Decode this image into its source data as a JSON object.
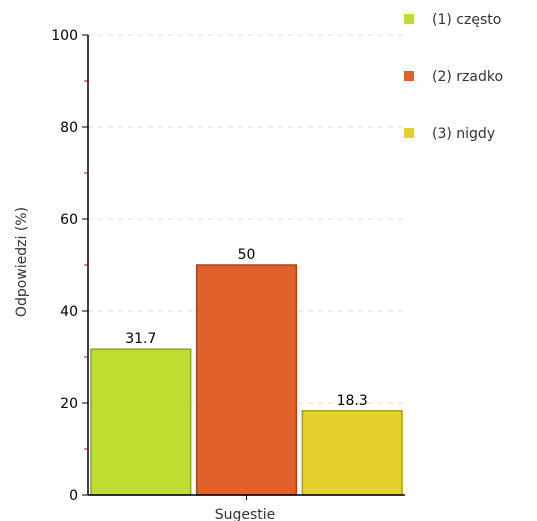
{
  "chart_data": {
    "type": "bar",
    "title": "",
    "xlabel": "Sugestie",
    "ylabel": "Odpowiedzi (%)",
    "ylim": [
      0,
      100
    ],
    "yticks": [
      "0",
      "20",
      "40",
      "60",
      "80",
      "100"
    ],
    "grid": true,
    "legend_position": "top-right",
    "series": [
      {
        "name": "(1) często",
        "value": 31.7,
        "value_label": "31.7",
        "color": "#bcdf2f",
        "border": "#8aa820"
      },
      {
        "name": "(2) rzadko",
        "value": 50,
        "value_label": "50",
        "color": "#e0612a",
        "border": "#a8441a"
      },
      {
        "name": "(3) nigdy",
        "value": 18.3,
        "value_label": "18.3",
        "color": "#e3d22e",
        "border": "#a89b1c"
      }
    ]
  }
}
